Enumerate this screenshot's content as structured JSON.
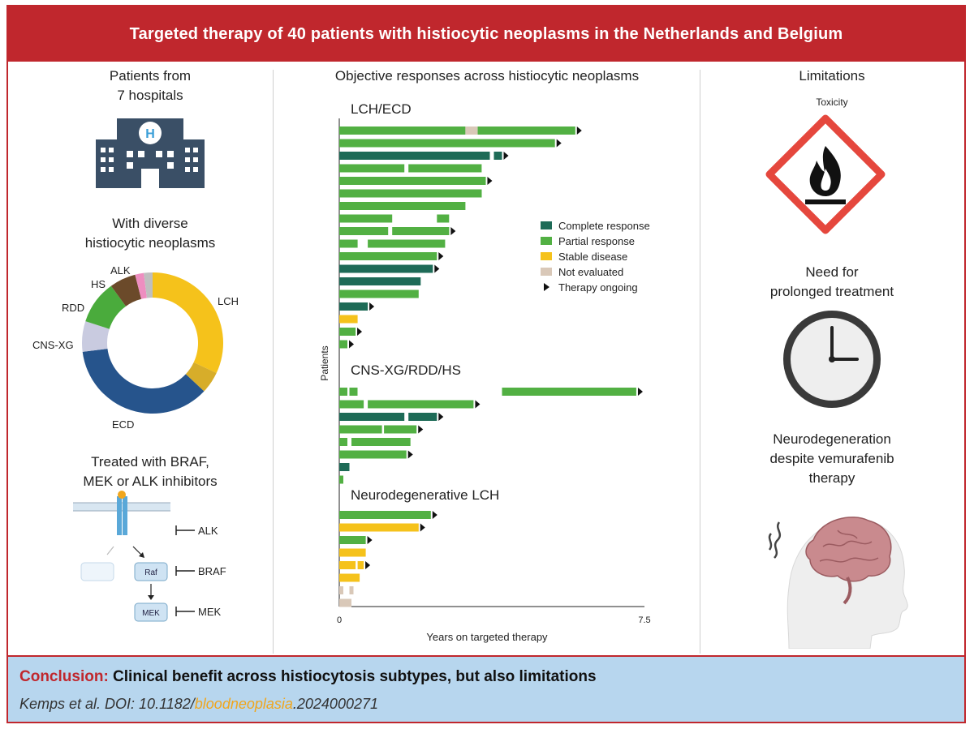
{
  "banner": {
    "title": "Targeted therapy of 40 patients with histiocytic neoplasms in the Netherlands and Belgium"
  },
  "left": {
    "hospitals_line1": "Patients from",
    "hospitals_line2": "7 hospitals",
    "hospital_badge": "H",
    "diverse_line1": "With diverse",
    "diverse_line2": "histiocytic neoplasms",
    "donut_labels": {
      "lch": "LCH",
      "ecd": "ECD",
      "cnsxg": "CNS-XG",
      "rdd": "RDD",
      "hs": "HS",
      "alk": "ALK"
    },
    "treated_line1": "Treated with BRAF,",
    "treated_line2": "MEK or ALK inhibitors",
    "pathway": {
      "raf": "Raf",
      "mek": "MEK",
      "alk": "ALK",
      "braf": "BRAF",
      "mek_label": "MEK"
    }
  },
  "center": {
    "title": "Objective responses across histiocytic neoplasms",
    "groups": [
      "LCH/ECD",
      "CNS-XG/RDD/HS",
      "Neurodegenerative LCH"
    ],
    "ylabel": "Patients",
    "xlabel": "Years on targeted therapy",
    "xticks": [
      "0",
      "7.5"
    ],
    "legend": [
      "Complete response",
      "Partial response",
      "Stable disease",
      "Not evaluated",
      "Therapy ongoing"
    ]
  },
  "right": {
    "limitations": "Limitations",
    "toxicity": "Toxicity",
    "prolonged_line1": "Need for",
    "prolonged_line2": "prolonged treatment",
    "neuro_line1": "Neurodegeneration",
    "neuro_line2": "despite vemurafenib",
    "neuro_line3": "therapy"
  },
  "footer": {
    "conclusion_label": "Conclusion:",
    "conclusion_text": " Clinical benefit across histiocytosis subtypes, but also limitations",
    "cite_prefix": "Kemps et al. DOI: 10.1182/",
    "cite_journal": "bloodneoplasia",
    "cite_suffix": ".2024000271"
  },
  "colors": {
    "cr": "#1e6b57",
    "pr": "#52b043",
    "sd": "#f5c21b",
    "ne": "#d9c8b8",
    "accent": "#c0272d"
  },
  "chart_data": {
    "type": "bar",
    "xlim": [
      0,
      7.5
    ],
    "series_names": [
      "Complete response",
      "Partial response",
      "Stable disease",
      "Not evaluated"
    ],
    "groups": [
      {
        "name": "LCH/ECD",
        "rows": [
          {
            "segs": [
              [
                "pr",
                0,
                3.1
              ],
              [
                "ne",
                3.1,
                3.4
              ],
              [
                "pr",
                3.4,
                5.8
              ]
            ],
            "ongoing": true
          },
          {
            "segs": [
              [
                "pr",
                0,
                5.3
              ]
            ],
            "ongoing": true
          },
          {
            "segs": [
              [
                "cr",
                0,
                3.7
              ],
              [
                "cr",
                3.8,
                4.0
              ]
            ],
            "ongoing": true
          },
          {
            "segs": [
              [
                "pr",
                0,
                1.6
              ],
              [
                "pr",
                1.7,
                3.5
              ]
            ],
            "ongoing": false
          },
          {
            "segs": [
              [
                "pr",
                0,
                3.6
              ]
            ],
            "ongoing": true
          },
          {
            "segs": [
              [
                "pr",
                0,
                3.5
              ]
            ],
            "ongoing": false
          },
          {
            "segs": [
              [
                "pr",
                0,
                3.1
              ]
            ],
            "ongoing": false
          },
          {
            "segs": [
              [
                "pr",
                0,
                1.3
              ],
              [
                "pr",
                2.4,
                2.7
              ]
            ],
            "ongoing": false
          },
          {
            "segs": [
              [
                "pr",
                0,
                1.2
              ],
              [
                "pr",
                1.3,
                2.7
              ]
            ],
            "ongoing": true
          },
          {
            "segs": [
              [
                "pr",
                0,
                0.45
              ],
              [
                "pr",
                0.7,
                2.6
              ]
            ],
            "ongoing": false
          },
          {
            "segs": [
              [
                "pr",
                0,
                2.4
              ]
            ],
            "ongoing": true
          },
          {
            "segs": [
              [
                "cr",
                0,
                2.3
              ]
            ],
            "ongoing": true
          },
          {
            "segs": [
              [
                "cr",
                0,
                2.0
              ]
            ],
            "ongoing": false
          },
          {
            "segs": [
              [
                "pr",
                0,
                1.95
              ]
            ],
            "ongoing": false
          },
          {
            "segs": [
              [
                "cr",
                0,
                0.7
              ]
            ],
            "ongoing": true
          },
          {
            "segs": [
              [
                "sd",
                0,
                0.45
              ]
            ],
            "ongoing": false
          },
          {
            "segs": [
              [
                "pr",
                0,
                0.4
              ]
            ],
            "ongoing": true
          },
          {
            "segs": [
              [
                "pr",
                0,
                0.2
              ]
            ],
            "ongoing": true
          }
        ]
      },
      {
        "name": "CNS-XG/RDD/HS",
        "rows": [
          {
            "segs": [
              [
                "pr",
                0,
                0.2
              ],
              [
                "pr",
                0.25,
                0.45
              ],
              [
                "pr",
                4.0,
                7.3
              ]
            ],
            "ongoing": true
          },
          {
            "segs": [
              [
                "pr",
                0,
                0.6
              ],
              [
                "pr",
                0.7,
                3.3
              ]
            ],
            "ongoing": true
          },
          {
            "segs": [
              [
                "cr",
                0,
                1.6
              ],
              [
                "cr",
                1.7,
                2.4
              ]
            ],
            "ongoing": true
          },
          {
            "segs": [
              [
                "pr",
                0,
                1.05
              ],
              [
                "pr",
                1.1,
                1.9
              ]
            ],
            "ongoing": true
          },
          {
            "segs": [
              [
                "pr",
                0,
                0.2
              ],
              [
                "pr",
                0.3,
                1.75
              ]
            ],
            "ongoing": false
          },
          {
            "segs": [
              [
                "pr",
                0,
                1.65
              ]
            ],
            "ongoing": true
          },
          {
            "segs": [
              [
                "cr",
                0,
                0.25
              ]
            ],
            "ongoing": false
          },
          {
            "segs": [
              [
                "pr",
                0,
                0.1
              ]
            ],
            "ongoing": false
          }
        ]
      },
      {
        "name": "Neurodegenerative LCH",
        "rows": [
          {
            "segs": [
              [
                "pr",
                0,
                2.25
              ]
            ],
            "ongoing": true
          },
          {
            "segs": [
              [
                "sd",
                0,
                1.95
              ]
            ],
            "ongoing": true
          },
          {
            "segs": [
              [
                "pr",
                0,
                0.65
              ]
            ],
            "ongoing": true
          },
          {
            "segs": [
              [
                "sd",
                0,
                0.65
              ]
            ],
            "ongoing": false
          },
          {
            "segs": [
              [
                "sd",
                0,
                0.4
              ],
              [
                "sd",
                0.45,
                0.6
              ]
            ],
            "ongoing": true
          },
          {
            "segs": [
              [
                "sd",
                0,
                0.5
              ]
            ],
            "ongoing": false
          },
          {
            "segs": [
              [
                "ne",
                0,
                0.1
              ],
              [
                "ne",
                0.25,
                0.35
              ]
            ],
            "ongoing": false
          },
          {
            "segs": [
              [
                "ne",
                0,
                0.3
              ]
            ],
            "ongoing": false
          }
        ]
      }
    ],
    "donut": [
      {
        "label": "LCH",
        "value": 32,
        "color": "#f5c21b"
      },
      {
        "label": "LCH (neurodegenerative)",
        "value": 5,
        "color": "#d7ad2a"
      },
      {
        "label": "ECD",
        "value": 36,
        "color": "#26548c"
      },
      {
        "label": "CNS-XG",
        "value": 7,
        "color": "#c9cbe0"
      },
      {
        "label": "RDD",
        "value": 10,
        "color": "#4aab3c"
      },
      {
        "label": "HS",
        "value": 6,
        "color": "#6b4a2a"
      },
      {
        "label": "ALK",
        "value": 2,
        "color": "#ee8ec0"
      },
      {
        "label": "other",
        "value": 2,
        "color": "#bfbfbf"
      }
    ]
  }
}
